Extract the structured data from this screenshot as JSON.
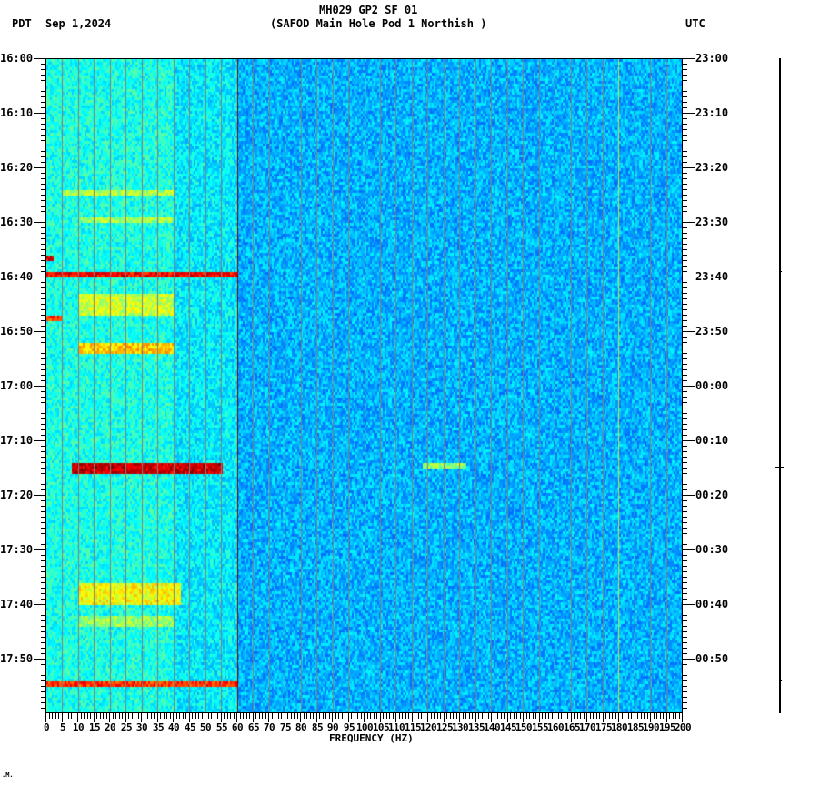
{
  "header": {
    "title": "MH029 GP2 SF 01",
    "subtitle": "(SAFOD Main Hole Pod 1 Northish )",
    "left_timezone": "PDT",
    "date": "Sep 1,2024",
    "right_timezone": "UTC"
  },
  "footer": {
    "mark": ".M."
  },
  "colors": {
    "background_low": "#0080ff",
    "mid": "#00ffff",
    "high": "#ffff00",
    "peak": "#800000",
    "gridline": "#808080"
  },
  "chart_data": {
    "type": "heatmap",
    "title": "MH029 GP2 SF 01 (SAFOD Main Hole Pod 1 Northish )",
    "xlabel": "FREQUENCY (HZ)",
    "ylabel_left": "PDT",
    "ylabel_right": "UTC",
    "xlim": [
      0,
      200
    ],
    "x_ticks": [
      "0",
      "5",
      "10",
      "15",
      "20",
      "25",
      "30",
      "35",
      "40",
      "45",
      "50",
      "55",
      "60",
      "65",
      "70",
      "75",
      "80",
      "85",
      "90",
      "95",
      "100",
      "105",
      "110",
      "115",
      "120",
      "125",
      "130",
      "135",
      "140",
      "145",
      "150",
      "155",
      "160",
      "165",
      "170",
      "175",
      "180",
      "185",
      "190",
      "195",
      "200"
    ],
    "y_ticks_left": [
      "16:00",
      "16:10",
      "16:20",
      "16:30",
      "16:40",
      "16:50",
      "17:00",
      "17:10",
      "17:20",
      "17:30",
      "17:40",
      "17:50"
    ],
    "y_ticks_right": [
      "23:00",
      "23:10",
      "23:20",
      "23:30",
      "23:40",
      "23:50",
      "00:00",
      "00:10",
      "00:20",
      "00:30",
      "00:40",
      "00:50"
    ],
    "time_range_minutes": 120,
    "persistent_lines_hz": [
      60,
      180
    ],
    "gridlines_every_hz": 5,
    "events": [
      {
        "name": "band 16:24",
        "start_min": 24,
        "end_min": 25,
        "f_lo": 5,
        "f_hi": 40,
        "level": 0.62
      },
      {
        "name": "band 16:29",
        "start_min": 29,
        "end_min": 30,
        "f_lo": 10,
        "f_hi": 40,
        "level": 0.6
      },
      {
        "name": "spike 16:36",
        "start_min": 36,
        "end_min": 37,
        "f_lo": 0,
        "f_hi": 2,
        "level": 1.0
      },
      {
        "name": "broadband 16:39",
        "start_min": 39,
        "end_min": 40,
        "f_lo": 0,
        "f_hi": 60,
        "level": 0.95
      },
      {
        "name": "cluster 16:43-16:47",
        "start_min": 43,
        "end_min": 47,
        "f_lo": 10,
        "f_hi": 40,
        "level": 0.65
      },
      {
        "name": "spike 16:47",
        "start_min": 47,
        "end_min": 48,
        "f_lo": 0,
        "f_hi": 5,
        "level": 0.9
      },
      {
        "name": "band 16:52-16:54",
        "start_min": 52,
        "end_min": 54,
        "f_lo": 10,
        "f_hi": 40,
        "level": 0.75
      },
      {
        "name": "strong 17:14-17:15",
        "start_min": 74,
        "end_min": 76,
        "f_lo": 8,
        "f_hi": 55,
        "level": 1.0
      },
      {
        "name": "weak 17:14 @125Hz",
        "start_min": 74,
        "end_min": 75,
        "f_lo": 118,
        "f_hi": 132,
        "level": 0.6
      },
      {
        "name": "cluster 17:36-17:40",
        "start_min": 96,
        "end_min": 100,
        "f_lo": 10,
        "f_hi": 42,
        "level": 0.7
      },
      {
        "name": "weak 17:42-17:44",
        "start_min": 102,
        "end_min": 104,
        "f_lo": 10,
        "f_hi": 40,
        "level": 0.6
      },
      {
        "name": "broadband 17:55",
        "start_min": 114,
        "end_min": 115,
        "f_lo": 0,
        "f_hi": 60,
        "level": 0.9
      }
    ]
  }
}
